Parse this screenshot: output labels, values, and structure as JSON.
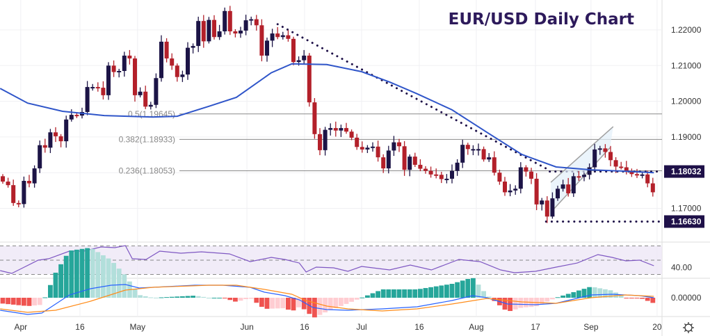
{
  "chart_data": {
    "type": "candlestick",
    "title": "EUR/USD Daily Chart",
    "price_axis": {
      "ticks": [
        "1.22000",
        "1.21000",
        "1.20000",
        "1.19000",
        "1.17000"
      ],
      "tick_values": [
        1.22,
        1.21,
        1.2,
        1.19,
        1.17
      ]
    },
    "badges": [
      {
        "label": "1.18032",
        "value": 1.18032
      },
      {
        "label": "1.16630",
        "value": 1.1663
      }
    ],
    "badge_color": "#1e1048",
    "x_ticks": [
      {
        "label": "Apr",
        "bar": 3.4
      },
      {
        "label": "16",
        "bar": 14.6
      },
      {
        "label": "May",
        "bar": 25.5
      },
      {
        "label": "Jun",
        "bar": 46.2
      },
      {
        "label": "16",
        "bar": 57.1
      },
      {
        "label": "Jul",
        "bar": 67.9
      },
      {
        "label": "16",
        "bar": 78.8
      },
      {
        "label": "Aug",
        "bar": 89.6
      },
      {
        "label": "17",
        "bar": 100.8
      },
      {
        "label": "Sep",
        "bar": 111.3
      },
      {
        "label": "20",
        "bar": 123.8
      }
    ],
    "first_open": 1.179,
    "closes": [
      1.1775,
      1.1765,
      1.1715,
      1.1712,
      1.1777,
      1.177,
      1.1812,
      1.1877,
      1.187,
      1.1913,
      1.1902,
      1.1888,
      1.1949,
      1.1962,
      1.196,
      1.197,
      1.204,
      1.204,
      1.2038,
      1.2017,
      1.21,
      1.2082,
      1.2085,
      1.2128,
      1.212,
      1.2017,
      1.2027,
      1.1985,
      1.199,
      1.2065,
      1.2167,
      1.212,
      1.21,
      1.2068,
      1.2075,
      1.215,
      1.2155,
      1.2225,
      1.2168,
      1.2228,
      1.218,
      1.2196,
      1.2253,
      1.2196,
      1.219,
      1.2198,
      1.2227,
      1.223,
      1.2213,
      1.2128,
      1.217,
      1.219,
      1.218,
      1.2185,
      1.2175,
      1.211,
      1.2115,
      1.2128,
      1.1997,
      1.1908,
      1.1863,
      1.192,
      1.1925,
      1.1918,
      1.1925,
      1.1915,
      1.1898,
      1.1872,
      1.1865,
      1.187,
      1.1873,
      1.1843,
      1.1812,
      1.1862,
      1.1885,
      1.1874,
      1.1808,
      1.1845,
      1.1822,
      1.1811,
      1.1805,
      1.1795,
      1.1794,
      1.1782,
      1.1783,
      1.1805,
      1.1828,
      1.1878,
      1.1866,
      1.1866,
      1.1866,
      1.1837,
      1.1843,
      1.18,
      1.1775,
      1.1745,
      1.175,
      1.1755,
      1.1815,
      1.1803,
      1.1783,
      1.1711,
      1.1722,
      1.1677,
      1.1728,
      1.1755,
      1.1767,
      1.1742,
      1.179,
      1.1788,
      1.1794,
      1.1815,
      1.1865,
      1.1868,
      1.1858,
      1.1835,
      1.1817,
      1.1815,
      1.1802,
      1.1796,
      1.1794,
      1.1795,
      1.177,
      1.1745
    ],
    "up_color": "#1c1446",
    "down_color": "#b3202a",
    "ma50": {
      "color": "#2f55c9",
      "points": [
        [
          -0.5,
          1.2036
        ],
        [
          4.7,
          1.1995
        ],
        [
          11.3,
          1.1972
        ],
        [
          19.2,
          1.196
        ],
        [
          28.4,
          1.1956
        ],
        [
          33,
          1.1958
        ],
        [
          39,
          1.1986
        ],
        [
          44.2,
          1.2011
        ],
        [
          50.8,
          1.208
        ],
        [
          54.7,
          1.2105
        ],
        [
          61.3,
          1.2103
        ],
        [
          67.9,
          1.2083
        ],
        [
          73.2,
          1.2054
        ],
        [
          78.4,
          1.2021
        ],
        [
          85,
          1.1976
        ],
        [
          91.6,
          1.1913
        ],
        [
          98.2,
          1.1851
        ],
        [
          104.7,
          1.1816
        ],
        [
          111.3,
          1.1808
        ],
        [
          117.9,
          1.1804
        ],
        [
          123.2,
          1.18
        ]
      ]
    },
    "fib_levels": [
      {
        "label": "0.5(1.19645)",
        "value": 1.19645
      },
      {
        "label": "0.382(1.18933)",
        "value": 1.18933
      },
      {
        "label": "0.236(1.18053)",
        "value": 1.18053
      }
    ],
    "trendline": {
      "from": [
        52,
        1.2216
      ],
      "to": [
        103.4,
        1.1807
      ]
    },
    "support_lines": [
      {
        "from_bar": 103.5,
        "value": 1.18032
      },
      {
        "from_bar": 102.8,
        "value": 1.1663
      }
    ],
    "channel": {
      "upper": [
        [
          103.7,
          1.1773
        ],
        [
          115.5,
          1.1929
        ]
      ],
      "lower": [
        [
          103.7,
          1.1689
        ],
        [
          114.9,
          1.187
        ]
      ]
    },
    "rsi": {
      "label": "40.00",
      "label_value": 40,
      "color": "#7e57c2",
      "points": [
        [
          -0.5,
          35.4
        ],
        [
          1.7,
          31.5
        ],
        [
          3.8,
          39.3
        ],
        [
          6.7,
          50
        ],
        [
          8.7,
          52
        ],
        [
          12.6,
          62.7
        ],
        [
          15.3,
          62.7
        ],
        [
          18.6,
          68.5
        ],
        [
          21.2,
          67.6
        ],
        [
          23.2,
          70.5
        ],
        [
          24.5,
          52
        ],
        [
          27.1,
          51
        ],
        [
          29.7,
          62.7
        ],
        [
          33.7,
          59.8
        ],
        [
          37.6,
          61.7
        ],
        [
          42.9,
          58.8
        ],
        [
          46.8,
          48
        ],
        [
          50.8,
          53.9
        ],
        [
          53.4,
          51
        ],
        [
          56.1,
          46
        ],
        [
          57.4,
          33.4
        ],
        [
          59.3,
          40.2
        ],
        [
          62.6,
          39.3
        ],
        [
          65.3,
          34.4
        ],
        [
          67.9,
          41.2
        ],
        [
          73.2,
          36.3
        ],
        [
          77.1,
          43.2
        ],
        [
          81.1,
          36.3
        ],
        [
          86.3,
          51
        ],
        [
          90.3,
          48
        ],
        [
          94.2,
          36.3
        ],
        [
          96.8,
          32.4
        ],
        [
          100.8,
          34.4
        ],
        [
          104.7,
          40.2
        ],
        [
          108.7,
          46
        ],
        [
          112.6,
          57.8
        ],
        [
          115.3,
          53.9
        ],
        [
          117.9,
          49
        ],
        [
          120.5,
          50
        ],
        [
          123.2,
          42.2
        ]
      ]
    },
    "macd": {
      "label": "0.00000",
      "macd_color": "#2962ff",
      "signal_color": "#ff8c1a",
      "macd_points": [
        [
          -0.5,
          -0.0045
        ],
        [
          4.7,
          -0.006
        ],
        [
          7.4,
          -0.0055
        ],
        [
          12.6,
          0.001
        ],
        [
          16.6,
          0.00325
        ],
        [
          20.5,
          0.0045
        ],
        [
          23.2,
          0.00475
        ],
        [
          25.8,
          0.0035
        ],
        [
          31.1,
          0.004
        ],
        [
          36.3,
          0.0045
        ],
        [
          41.6,
          0.0045
        ],
        [
          46.8,
          0.00375
        ],
        [
          49.5,
          0.002
        ],
        [
          53.4,
          0.00075
        ],
        [
          56.1,
          -0.00075
        ],
        [
          58.7,
          -0.0035
        ],
        [
          61.3,
          -0.00425
        ],
        [
          65.3,
          -0.0045
        ],
        [
          71.8,
          -0.004
        ],
        [
          78.4,
          -0.00325
        ],
        [
          85,
          -0.001
        ],
        [
          88.9,
          0.00075
        ],
        [
          91.6,
          0
        ],
        [
          95.5,
          -0.00225
        ],
        [
          100.8,
          -0.0025
        ],
        [
          104.7,
          -0.002
        ],
        [
          111.3,
          0.001
        ],
        [
          115.3,
          0.00125
        ],
        [
          120.5,
          0.00075
        ],
        [
          123.2,
          0
        ]
      ],
      "signal_points": [
        [
          -0.5,
          -0.004
        ],
        [
          4.7,
          -0.00525
        ],
        [
          10,
          -0.0045
        ],
        [
          16.6,
          -0.00125
        ],
        [
          23.2,
          0.00275
        ],
        [
          28.4,
          0.00375
        ],
        [
          39,
          0.0045
        ],
        [
          44.2,
          0.0045
        ],
        [
          49.5,
          0.003
        ],
        [
          54.7,
          0.00125
        ],
        [
          57.4,
          -0.001
        ],
        [
          61.3,
          -0.003
        ],
        [
          65.3,
          -0.004
        ],
        [
          71.8,
          -0.00475
        ],
        [
          78.4,
          -0.004
        ],
        [
          85,
          -0.00225
        ],
        [
          91.6,
          -0.00025
        ],
        [
          98.2,
          -0.0015
        ],
        [
          104.7,
          -0.002
        ],
        [
          111.3,
          0
        ],
        [
          117.9,
          0.001
        ],
        [
          123.2,
          0.0005
        ]
      ],
      "hist_colors": {
        "pos_up": "#26a69a",
        "pos_down": "#b2dfdb",
        "neg_down": "#ef5350",
        "neg_up": "#ffcdd2"
      }
    }
  },
  "settings_icon": "gear-icon"
}
